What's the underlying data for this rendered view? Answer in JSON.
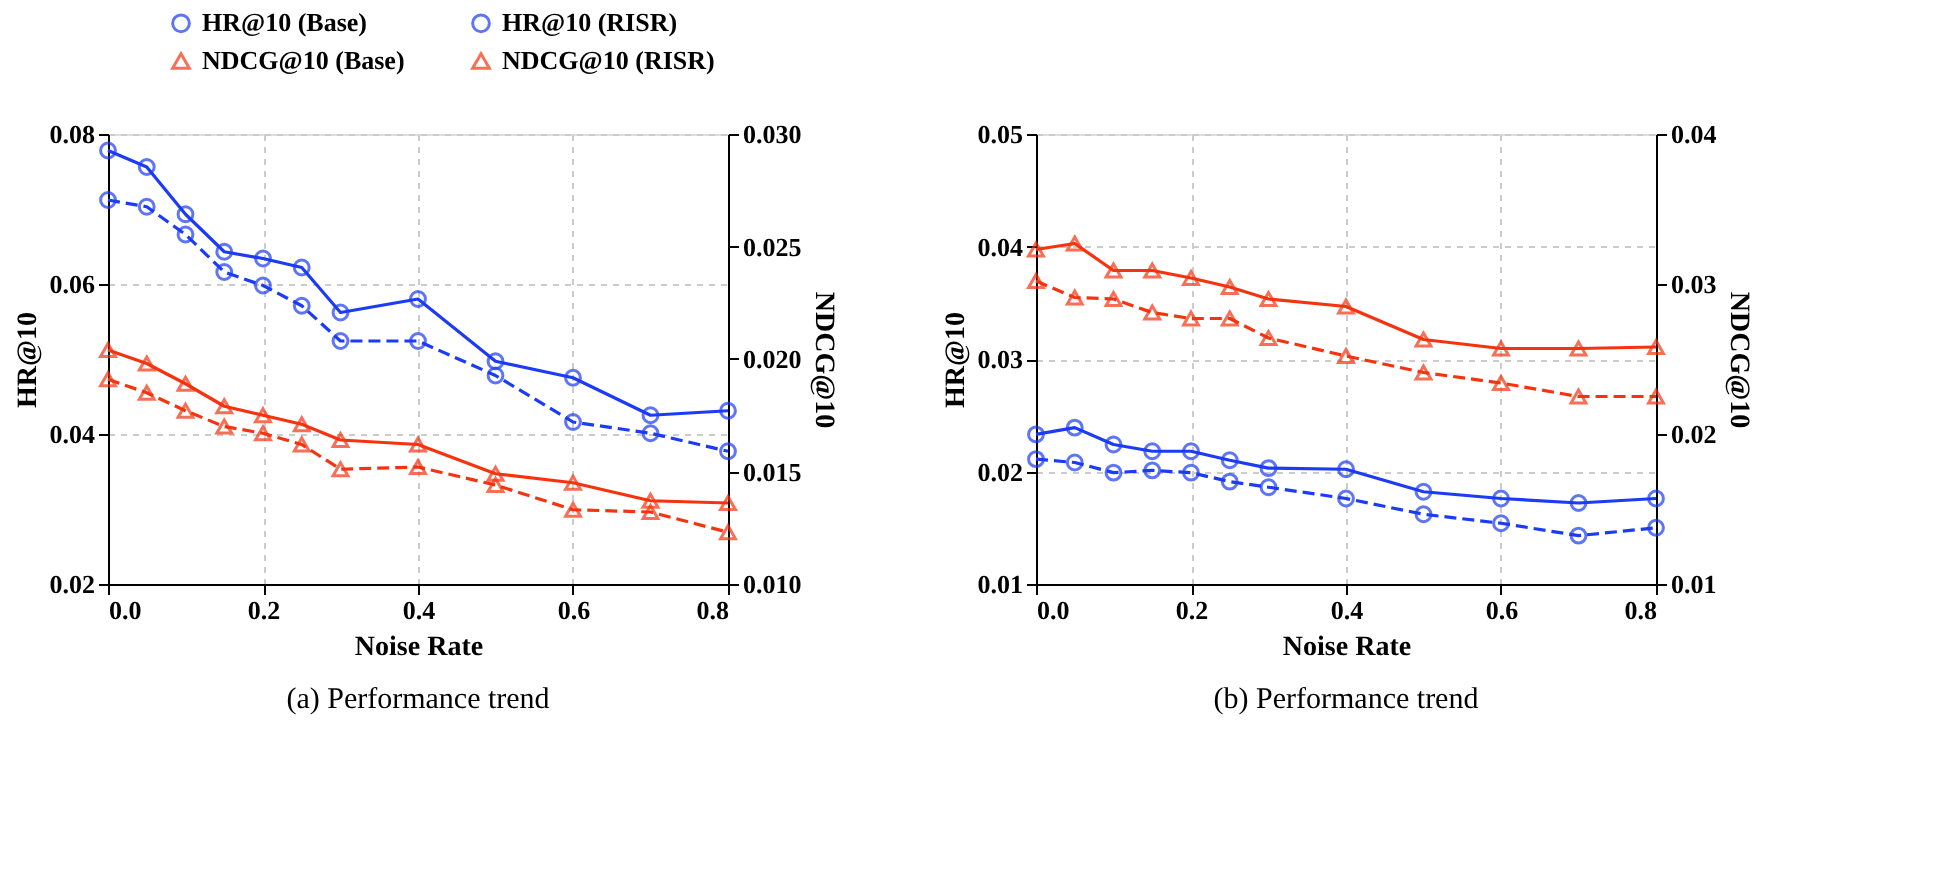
{
  "chart_data": [
    {
      "type": "line",
      "xlabel": "Noise Rate",
      "ylabel": "HR@10",
      "y2label": "NDCG@10",
      "annotations": [
        "(a) Performance trend"
      ],
      "x": [
        0,
        0.05,
        0.1,
        0.15,
        0.2,
        0.25,
        0.3,
        0.4,
        0.5,
        0.6,
        0.7,
        0.8
      ],
      "xlim": [
        0,
        0.8
      ],
      "xticks": [
        {
          "value": 0,
          "label": "0.0"
        },
        0.2,
        0.4,
        0.6,
        0.8
      ],
      "ylim": [
        0.02,
        0.08
      ],
      "yticks": [
        0.02,
        0.04,
        0.06,
        0.08
      ],
      "y2lim": [
        0.01,
        0.03
      ],
      "y2ticks": [
        {
          "value": 0.01,
          "label": "0.010"
        },
        0.015,
        {
          "value": 0.02,
          "label": "0.020"
        },
        0.025,
        {
          "value": 0.03,
          "label": "0.030"
        }
      ],
      "grid": true,
      "legend": "top",
      "series": [
        {
          "name": "HR@10 (Base)",
          "color": "#1c3bf5",
          "line_style": "dashed",
          "marker": "circle",
          "values": [
            0.0712,
            0.0703,
            0.0666,
            0.0616,
            0.0598,
            0.0571,
            0.0524,
            0.0524,
            0.0478,
            0.0416,
            0.0401,
            0.0377
          ]
        },
        {
          "name": "NDCG@10 (Base)",
          "color": "#f5330f",
          "line_style": "dashed",
          "marker": "triangle",
          "axis": "y2",
          "values": [
            0.0191,
            0.0185,
            0.0177,
            0.017,
            0.0167,
            0.0162,
            0.0151,
            0.0152,
            0.0144,
            0.0133,
            0.0132,
            0.0123
          ]
        },
        {
          "name": "HR@10 (RISR)",
          "color": "#1c3bf5",
          "line_style": "solid",
          "marker": "circle",
          "values": [
            0.0778,
            0.0756,
            0.0693,
            0.0643,
            0.0634,
            0.0622,
            0.0562,
            0.058,
            0.0497,
            0.0475,
            0.0425,
            0.0431
          ]
        },
        {
          "name": "NDCG@10 (RISR)",
          "color": "#f5330f",
          "line_style": "solid",
          "marker": "triangle",
          "axis": "y2",
          "values": [
            0.0204,
            0.0198,
            0.0189,
            0.0179,
            0.0175,
            0.0171,
            0.0164,
            0.0162,
            0.0149,
            0.0145,
            0.0137,
            0.0136
          ]
        }
      ]
    },
    {
      "type": "line",
      "xlabel": "Noise Rate",
      "ylabel": "HR@10",
      "y2label": "NDCG@10",
      "annotations": [
        "(b) Performance trend"
      ],
      "x": [
        0,
        0.05,
        0.1,
        0.15,
        0.2,
        0.25,
        0.3,
        0.4,
        0.5,
        0.6,
        0.7,
        0.8
      ],
      "xlim": [
        0,
        0.8
      ],
      "xticks": [
        {
          "value": 0,
          "label": "0.0"
        },
        0.2,
        0.4,
        0.6,
        0.8
      ],
      "ylim": [
        0.01,
        0.05
      ],
      "yticks": [
        0.01,
        0.02,
        0.03,
        0.04,
        0.05
      ],
      "y2lim": [
        0.01,
        0.04
      ],
      "y2ticks": [
        0.01,
        0.02,
        0.03,
        0.04
      ],
      "grid": true,
      "legend": "top",
      "series": [
        {
          "name": "HR@10 (Base)",
          "color": "#1c3bf5",
          "line_style": "dashed",
          "marker": "circle",
          "values": [
            0.0211,
            0.0208,
            0.0199,
            0.0201,
            0.0199,
            0.0191,
            0.0186,
            0.0176,
            0.0162,
            0.0154,
            0.0143,
            0.015
          ]
        },
        {
          "name": "NDCG@10 (Base)",
          "color": "#f5330f",
          "line_style": "dashed",
          "marker": "triangle",
          "axis": "y2",
          "values": [
            0.0302,
            0.0291,
            0.029,
            0.0281,
            0.0277,
            0.0277,
            0.0264,
            0.0252,
            0.0241,
            0.0234,
            0.0225,
            0.0225
          ]
        },
        {
          "name": "HR@10 (RISR)",
          "color": "#1c3bf5",
          "line_style": "solid",
          "marker": "circle",
          "values": [
            0.0233,
            0.0239,
            0.0224,
            0.0218,
            0.0218,
            0.021,
            0.0203,
            0.0202,
            0.0182,
            0.0176,
            0.0172,
            0.0176
          ]
        },
        {
          "name": "NDCG@10 (RISR)",
          "color": "#f5330f",
          "line_style": "solid",
          "marker": "triangle",
          "axis": "y2",
          "values": [
            0.0323,
            0.0327,
            0.0309,
            0.0309,
            0.0304,
            0.0298,
            0.029,
            0.0285,
            0.0263,
            0.0257,
            0.0257,
            0.0258
          ]
        }
      ]
    }
  ]
}
